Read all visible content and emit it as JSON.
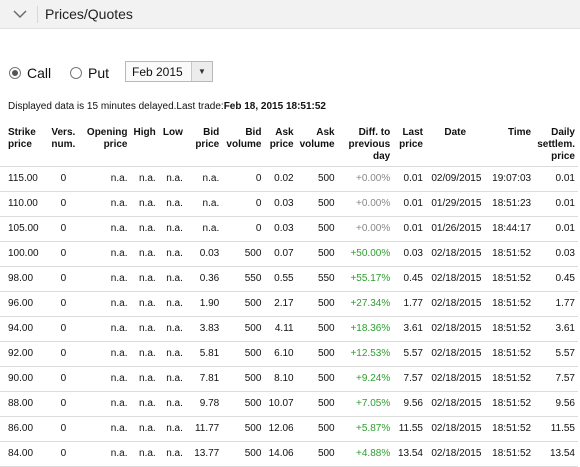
{
  "panel": {
    "title": "Prices/Quotes"
  },
  "options": {
    "call_label": "Call",
    "put_label": "Put",
    "selected": "Call"
  },
  "expiry_select": {
    "value": "Feb 2015"
  },
  "delay_notice": {
    "text": "Displayed data is 15 minutes delayed.Last trade:",
    "last_trade": "Feb 18, 2015 18:51:52"
  },
  "table": {
    "columns": [
      [
        "Strike",
        "price"
      ],
      [
        "Vers.",
        "num."
      ],
      [
        "Opening",
        "price"
      ],
      [
        "High"
      ],
      [
        "Low"
      ],
      [
        "Bid",
        "price"
      ],
      [
        "Bid",
        "volume"
      ],
      [
        "Ask",
        "price"
      ],
      [
        "Ask",
        "volume"
      ],
      [
        "Diff. to",
        "previous",
        "day"
      ],
      [
        "Last",
        "price"
      ],
      [
        "Date"
      ],
      [
        "Time"
      ],
      [
        "Daily",
        "settlem.",
        "price"
      ]
    ],
    "rows": [
      [
        "115.00",
        "0",
        "n.a.",
        "n.a.",
        "n.a.",
        "n.a.",
        "0",
        "0.02",
        "500",
        "+0.00%",
        "0.01",
        "02/09/2015",
        "19:07:03",
        "0.01"
      ],
      [
        "110.00",
        "0",
        "n.a.",
        "n.a.",
        "n.a.",
        "n.a.",
        "0",
        "0.03",
        "500",
        "+0.00%",
        "0.01",
        "01/29/2015",
        "18:51:23",
        "0.01"
      ],
      [
        "105.00",
        "0",
        "n.a.",
        "n.a.",
        "n.a.",
        "n.a.",
        "0",
        "0.03",
        "500",
        "+0.00%",
        "0.01",
        "01/26/2015",
        "18:44:17",
        "0.01"
      ],
      [
        "100.00",
        "0",
        "n.a.",
        "n.a.",
        "n.a.",
        "0.03",
        "500",
        "0.07",
        "500",
        "+50.00%",
        "0.03",
        "02/18/2015",
        "18:51:52",
        "0.03"
      ],
      [
        "98.00",
        "0",
        "n.a.",
        "n.a.",
        "n.a.",
        "0.36",
        "550",
        "0.55",
        "550",
        "+55.17%",
        "0.45",
        "02/18/2015",
        "18:51:52",
        "0.45"
      ],
      [
        "96.00",
        "0",
        "n.a.",
        "n.a.",
        "n.a.",
        "1.90",
        "500",
        "2.17",
        "500",
        "+27.34%",
        "1.77",
        "02/18/2015",
        "18:51:52",
        "1.77"
      ],
      [
        "94.00",
        "0",
        "n.a.",
        "n.a.",
        "n.a.",
        "3.83",
        "500",
        "4.11",
        "500",
        "+18.36%",
        "3.61",
        "02/18/2015",
        "18:51:52",
        "3.61"
      ],
      [
        "92.00",
        "0",
        "n.a.",
        "n.a.",
        "n.a.",
        "5.81",
        "500",
        "6.10",
        "500",
        "+12.53%",
        "5.57",
        "02/18/2015",
        "18:51:52",
        "5.57"
      ],
      [
        "90.00",
        "0",
        "n.a.",
        "n.a.",
        "n.a.",
        "7.81",
        "500",
        "8.10",
        "500",
        "+9.24%",
        "7.57",
        "02/18/2015",
        "18:51:52",
        "7.57"
      ],
      [
        "88.00",
        "0",
        "n.a.",
        "n.a.",
        "n.a.",
        "9.78",
        "500",
        "10.07",
        "500",
        "+7.05%",
        "9.56",
        "02/18/2015",
        "18:51:52",
        "9.56"
      ],
      [
        "86.00",
        "0",
        "n.a.",
        "n.a.",
        "n.a.",
        "11.77",
        "500",
        "12.06",
        "500",
        "+5.87%",
        "11.55",
        "02/18/2015",
        "18:51:52",
        "11.55"
      ],
      [
        "84.00",
        "0",
        "n.a.",
        "n.a.",
        "n.a.",
        "13.77",
        "500",
        "14.06",
        "500",
        "+4.88%",
        "13.54",
        "02/18/2015",
        "18:51:52",
        "13.54"
      ]
    ]
  },
  "colors": {
    "positive": "#2e9e2e",
    "zero": "#888888",
    "header_bg": "#f2f2f2"
  }
}
